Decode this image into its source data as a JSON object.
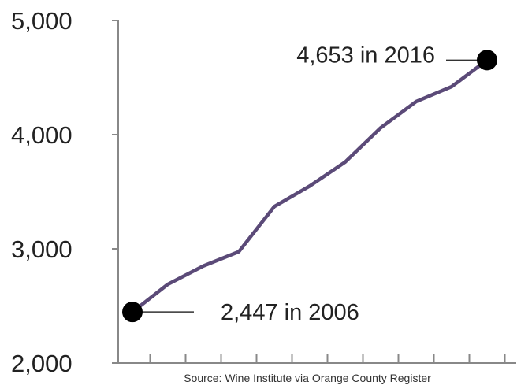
{
  "chart_data": {
    "type": "line",
    "x": [
      2006,
      2007,
      2008,
      2009,
      2010,
      2011,
      2012,
      2013,
      2014,
      2015,
      2016
    ],
    "series": [
      {
        "values": [
          2447,
          2690,
          2850,
          2975,
          3370,
          3550,
          3760,
          4060,
          4290,
          4420,
          4653
        ]
      }
    ],
    "ylim": [
      2000,
      5000
    ],
    "yticks": [
      {
        "value": 2000,
        "label": "2,000"
      },
      {
        "value": 3000,
        "label": "3,000"
      },
      {
        "value": 4000,
        "label": "4,000"
      },
      {
        "value": 5000,
        "label": "5,000"
      }
    ],
    "xlim": [
      2005.6,
      2016.6
    ],
    "annotations": [
      {
        "x": 2006,
        "y": 2447,
        "text": "2,447 in 2006"
      },
      {
        "x": 2016,
        "y": 4653,
        "text": "4,653 in 2016"
      }
    ],
    "source": "Source: Wine Institute via Orange County Register",
    "line_color": "#5b4a78",
    "axis_color": "#888888",
    "marker_color": "#000000",
    "grid": false,
    "title": "",
    "xlabel": "",
    "ylabel": ""
  }
}
